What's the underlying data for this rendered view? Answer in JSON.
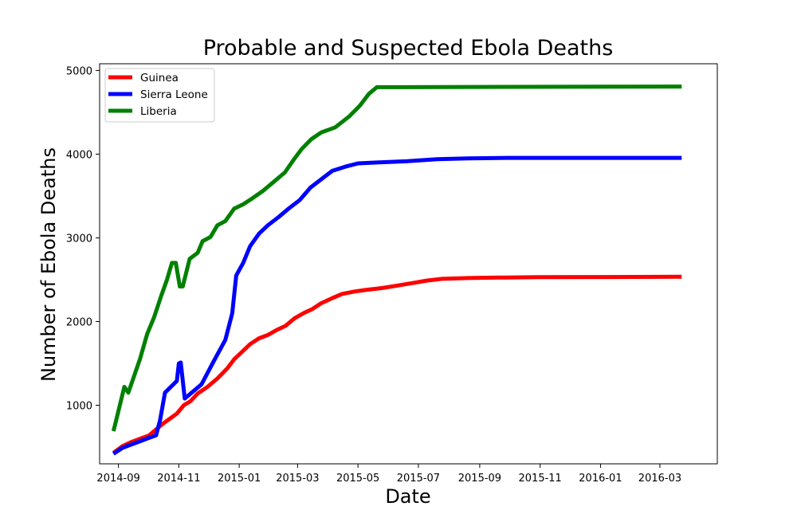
{
  "chart_data": {
    "type": "line",
    "title": "Probable and Suspected Ebola Deaths",
    "xlabel": "Date",
    "ylabel": "Number of Ebola Deaths",
    "xlim": [
      "2014-08-13",
      "2016-04-28"
    ],
    "ylim": [
      300,
      5080
    ],
    "x_ticks": [
      "2014-09",
      "2014-11",
      "2015-01",
      "2015-03",
      "2015-05",
      "2015-07",
      "2015-09",
      "2015-11",
      "2016-01",
      "2016-03"
    ],
    "y_ticks": [
      1000,
      2000,
      3000,
      4000,
      5000
    ],
    "grid": false,
    "legend": "upper-left",
    "series": [
      {
        "name": "Guinea",
        "color": "#ff0000",
        "points": [
          [
            "2014-08-27",
            430
          ],
          [
            "2014-09-05",
            510
          ],
          [
            "2014-09-14",
            560
          ],
          [
            "2014-09-23",
            600
          ],
          [
            "2014-10-02",
            640
          ],
          [
            "2014-10-09",
            710
          ],
          [
            "2014-10-16",
            780
          ],
          [
            "2014-10-23",
            840
          ],
          [
            "2014-10-30",
            900
          ],
          [
            "2014-11-06",
            1000
          ],
          [
            "2014-11-13",
            1050
          ],
          [
            "2014-11-20",
            1140
          ],
          [
            "2014-11-30",
            1220
          ],
          [
            "2014-12-10",
            1320
          ],
          [
            "2014-12-20",
            1440
          ],
          [
            "2014-12-27",
            1550
          ],
          [
            "2015-01-05",
            1650
          ],
          [
            "2015-01-12",
            1730
          ],
          [
            "2015-01-21",
            1800
          ],
          [
            "2015-01-30",
            1840
          ],
          [
            "2015-02-08",
            1900
          ],
          [
            "2015-02-17",
            1950
          ],
          [
            "2015-02-26",
            2040
          ],
          [
            "2015-03-07",
            2100
          ],
          [
            "2015-03-16",
            2150
          ],
          [
            "2015-03-25",
            2220
          ],
          [
            "2015-04-05",
            2280
          ],
          [
            "2015-04-15",
            2330
          ],
          [
            "2015-04-28",
            2360
          ],
          [
            "2015-05-10",
            2380
          ],
          [
            "2015-05-25",
            2400
          ],
          [
            "2015-06-10",
            2430
          ],
          [
            "2015-06-25",
            2460
          ],
          [
            "2015-07-10",
            2490
          ],
          [
            "2015-07-25",
            2510
          ],
          [
            "2015-08-20",
            2520
          ],
          [
            "2015-09-20",
            2525
          ],
          [
            "2015-10-30",
            2530
          ],
          [
            "2016-01-01",
            2532
          ],
          [
            "2016-03-23",
            2535
          ]
        ]
      },
      {
        "name": "Sierra Leone",
        "color": "#0000ff",
        "points": [
          [
            "2014-08-27",
            420
          ],
          [
            "2014-09-05",
            490
          ],
          [
            "2014-09-14",
            530
          ],
          [
            "2014-09-23",
            570
          ],
          [
            "2014-10-02",
            610
          ],
          [
            "2014-10-09",
            640
          ],
          [
            "2014-10-13",
            820
          ],
          [
            "2014-10-18",
            1150
          ],
          [
            "2014-10-30",
            1290
          ],
          [
            "2014-11-01",
            1500
          ],
          [
            "2014-11-03",
            1510
          ],
          [
            "2014-11-07",
            1080
          ],
          [
            "2014-11-15",
            1160
          ],
          [
            "2014-11-24",
            1250
          ],
          [
            "2014-12-06",
            1520
          ],
          [
            "2014-12-18",
            1780
          ],
          [
            "2014-12-25",
            2100
          ],
          [
            "2014-12-29",
            2550
          ],
          [
            "2015-01-05",
            2700
          ],
          [
            "2015-01-12",
            2900
          ],
          [
            "2015-01-21",
            3050
          ],
          [
            "2015-01-30",
            3150
          ],
          [
            "2015-02-10",
            3250
          ],
          [
            "2015-02-20",
            3350
          ],
          [
            "2015-03-03",
            3450
          ],
          [
            "2015-03-14",
            3600
          ],
          [
            "2015-03-25",
            3700
          ],
          [
            "2015-04-05",
            3800
          ],
          [
            "2015-04-18",
            3850
          ],
          [
            "2015-05-01",
            3890
          ],
          [
            "2015-05-20",
            3900
          ],
          [
            "2015-06-20",
            3915
          ],
          [
            "2015-07-20",
            3940
          ],
          [
            "2015-08-20",
            3950
          ],
          [
            "2015-10-01",
            3955
          ],
          [
            "2016-03-23",
            3955
          ]
        ]
      },
      {
        "name": "Liberia",
        "color": "#008000",
        "points": [
          [
            "2014-08-27",
            690
          ],
          [
            "2014-09-07",
            1220
          ],
          [
            "2014-09-11",
            1150
          ],
          [
            "2014-09-16",
            1320
          ],
          [
            "2014-09-23",
            1560
          ],
          [
            "2014-09-30",
            1850
          ],
          [
            "2014-10-07",
            2050
          ],
          [
            "2014-10-14",
            2300
          ],
          [
            "2014-10-20",
            2500
          ],
          [
            "2014-10-25",
            2700
          ],
          [
            "2014-10-29",
            2700
          ],
          [
            "2014-11-02",
            2420
          ],
          [
            "2014-11-05",
            2420
          ],
          [
            "2014-11-12",
            2750
          ],
          [
            "2014-11-20",
            2820
          ],
          [
            "2014-11-25",
            2960
          ],
          [
            "2014-12-03",
            3010
          ],
          [
            "2014-12-10",
            3150
          ],
          [
            "2014-12-18",
            3200
          ],
          [
            "2014-12-27",
            3350
          ],
          [
            "2015-01-05",
            3400
          ],
          [
            "2015-01-14",
            3470
          ],
          [
            "2015-01-25",
            3560
          ],
          [
            "2015-02-05",
            3670
          ],
          [
            "2015-02-16",
            3780
          ],
          [
            "2015-02-26",
            3950
          ],
          [
            "2015-03-05",
            4060
          ],
          [
            "2015-03-15",
            4180
          ],
          [
            "2015-03-25",
            4260
          ],
          [
            "2015-04-08",
            4320
          ],
          [
            "2015-04-22",
            4450
          ],
          [
            "2015-05-03",
            4580
          ],
          [
            "2015-05-12",
            4720
          ],
          [
            "2015-05-20",
            4800
          ],
          [
            "2016-03-23",
            4808
          ]
        ]
      }
    ]
  }
}
